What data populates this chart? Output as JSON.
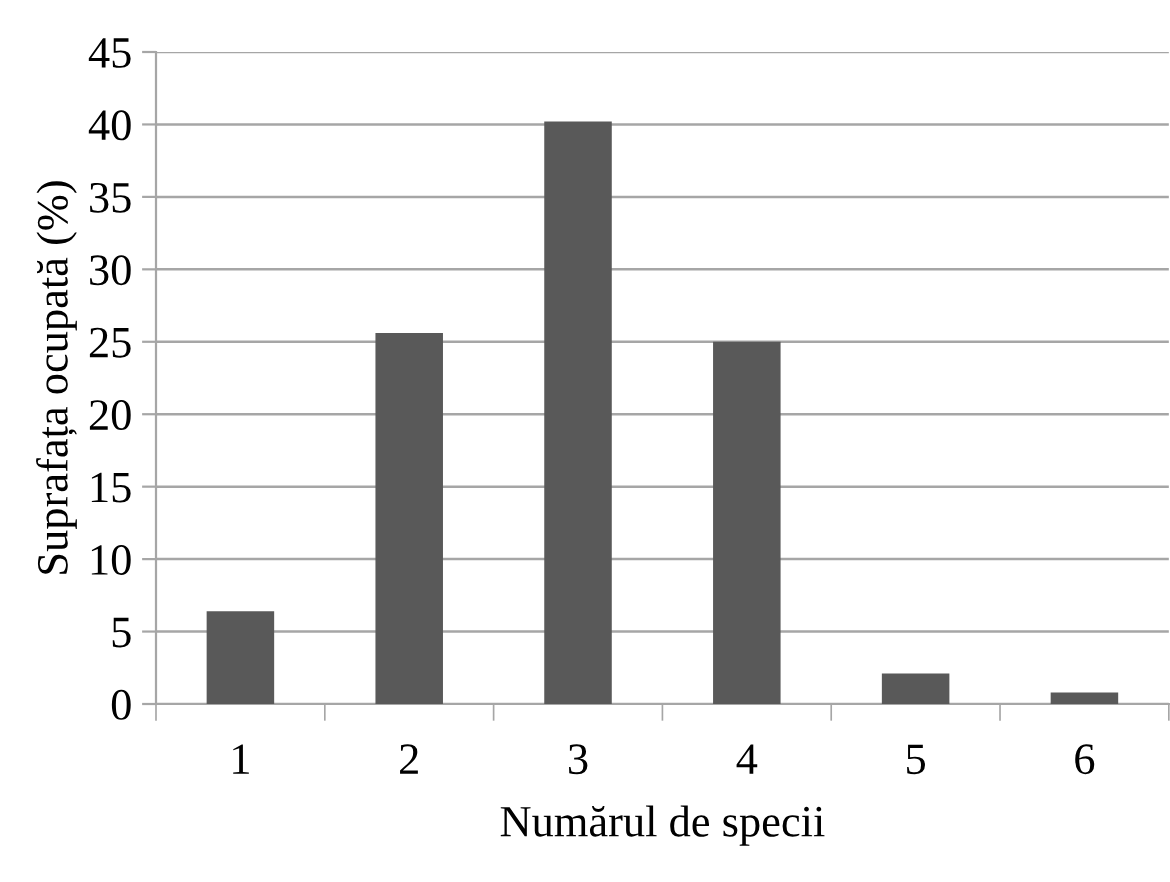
{
  "chart_data": {
    "type": "bar",
    "xlabel": "Numărul de specii",
    "ylabel": "Suprafața ocupată (%)",
    "categories": [
      "1",
      "2",
      "3",
      "4",
      "5",
      "6"
    ],
    "values": [
      6.4,
      25.6,
      40.2,
      25.0,
      2.1,
      0.8
    ],
    "color": "#595959",
    "ylim": [
      0,
      45
    ],
    "yticks": [
      0,
      5,
      10,
      15,
      20,
      25,
      30,
      35,
      40,
      45
    ],
    "grid": "y",
    "legend": false
  }
}
